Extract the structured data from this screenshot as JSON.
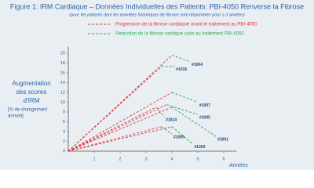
{
  "chart_data": {
    "type": "line",
    "title": "Figure 1: IRM Cardiaque – Données Individuelles des Patients: PBI-4050 Renverse la Fibrose",
    "subtitle": "(pour les patients dont les données historiques de fibrose sont disponibles pour ≥ 3 années)",
    "ylabel": [
      "Augmentation",
      "des scores",
      "d'IRM"
    ],
    "ylabel_note": [
      "[% de changement",
      "annuel]"
    ],
    "xlabel": "Années",
    "legend": [
      {
        "name": "Progression de la fibrose cardiaque avant le traitement au PBI-4050",
        "color": "#e0363a"
      },
      {
        "name": "Reduction de la fibrose cardique suite au traitement PBI-4050",
        "color": "#2fab4f"
      }
    ],
    "patients": [
      {
        "label": "#1004",
        "x": [
          0,
          4,
          4.7
        ],
        "values": [
          0,
          19.6,
          18.3
        ]
      },
      {
        "label": "#1015",
        "x": [
          0,
          3.6,
          4.1
        ],
        "values": [
          0,
          17.3,
          17.3
        ]
      },
      {
        "label": "#1007",
        "x": [
          0,
          4,
          5
        ],
        "values": [
          0,
          12,
          10
        ]
      },
      {
        "label": "#1005",
        "x": [
          0,
          3.8,
          5
        ],
        "values": [
          0,
          9.5,
          7.5
        ]
      },
      {
        "label": "#1014",
        "x": [
          0,
          3.4,
          3.7
        ],
        "values": [
          0,
          9,
          7
        ]
      },
      {
        "label": "#1001",
        "x": [
          0,
          4,
          5.7
        ],
        "values": [
          0,
          9,
          3
        ]
      },
      {
        "label": "#1009",
        "x": [
          0,
          3.6,
          4
        ],
        "values": [
          0,
          5,
          3.5
        ]
      },
      {
        "label": "#1003",
        "x": [
          0,
          4,
          4.8
        ],
        "values": [
          0,
          5,
          1.5
        ]
      }
    ],
    "xlim": [
      0,
      6.5
    ],
    "ylim": [
      0,
      21
    ],
    "xticks": [
      1,
      2,
      3,
      4,
      5,
      6
    ],
    "yticks": [
      0,
      2,
      4,
      6,
      8,
      10,
      12,
      14,
      16,
      18,
      20
    ],
    "grid": false
  }
}
